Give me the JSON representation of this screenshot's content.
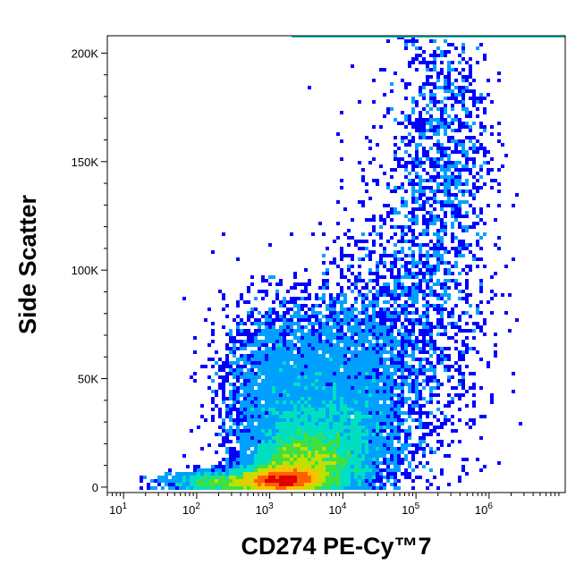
{
  "chart_data": {
    "type": "scatter",
    "subtype": "flow-cytometry density (pseudocolor) dot plot",
    "title": "",
    "xlabel": "CD274 PE-Cy™7",
    "ylabel": "Side Scatter",
    "x_scale": "log",
    "y_scale": "linear",
    "xlim": [
      6,
      11000000
    ],
    "ylim": [
      -2500,
      208000
    ],
    "x_ticks": [
      {
        "value": 10,
        "base": "10",
        "exp": "1"
      },
      {
        "value": 100,
        "base": "10",
        "exp": "2"
      },
      {
        "value": 1000,
        "base": "10",
        "exp": "3"
      },
      {
        "value": 10000,
        "base": "10",
        "exp": "4"
      },
      {
        "value": 100000,
        "base": "10",
        "exp": "5"
      },
      {
        "value": 1000000,
        "base": "10",
        "exp": "6"
      }
    ],
    "y_ticks": [
      {
        "value": 0,
        "label": "0"
      },
      {
        "value": 50000,
        "label": "50K"
      },
      {
        "value": 100000,
        "label": "100K"
      },
      {
        "value": 150000,
        "label": "150K"
      },
      {
        "value": 200000,
        "label": "200K"
      }
    ],
    "grid": false,
    "legend": "none",
    "colormap": [
      "#0000ff",
      "#00a0ff",
      "#00e0c0",
      "#40e040",
      "#c0e000",
      "#ffc000",
      "#ff6000",
      "#e00000"
    ],
    "density_regions": [
      {
        "x_center": 1500,
        "y_center": 3000,
        "x_spread_decades": 0.28,
        "y_spread": 3000,
        "peak_level": 1.0
      },
      {
        "x_center": 3000,
        "y_center": 10000,
        "x_spread_decades": 0.35,
        "y_spread": 7000,
        "peak_level": 0.75
      },
      {
        "x_center": 5000,
        "y_center": 20000,
        "x_spread_decades": 0.45,
        "y_spread": 12000,
        "peak_level": 0.55
      },
      {
        "x_center": 1500,
        "y_center": 45000,
        "x_spread_decades": 0.4,
        "y_spread": 20000,
        "peak_level": 0.35
      },
      {
        "x_center": 15000,
        "y_center": 45000,
        "x_spread_decades": 0.4,
        "y_spread": 25000,
        "peak_level": 0.3
      },
      {
        "x_center": 120000,
        "y_center": 90000,
        "x_spread_decades": 0.45,
        "y_spread": 45000,
        "peak_level": 0.18
      },
      {
        "x_center": 250000,
        "y_center": 165000,
        "x_spread_decades": 0.3,
        "y_spread": 30000,
        "peak_level": 0.08
      },
      {
        "x_center": 300,
        "y_center": 2000,
        "x_spread_decades": 0.4,
        "y_spread": 2500,
        "peak_level": 0.3
      }
    ]
  }
}
